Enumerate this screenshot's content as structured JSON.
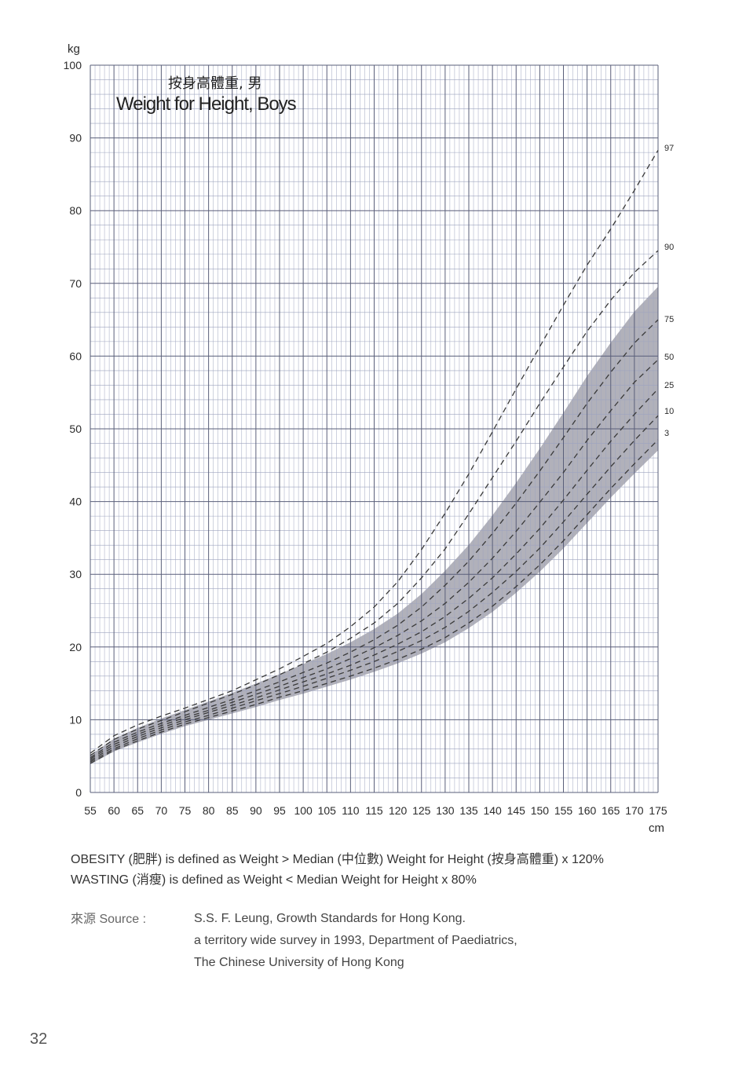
{
  "chart_data": {
    "type": "line",
    "title": "按身高體重, 男",
    "subtitle": "Weight for Height, Boys",
    "xlabel": "cm",
    "ylabel": "kg",
    "xlim": [
      55,
      175
    ],
    "ylim": [
      0,
      100
    ],
    "x_ticks": [
      55,
      60,
      65,
      70,
      75,
      80,
      85,
      90,
      95,
      100,
      105,
      110,
      115,
      120,
      125,
      130,
      135,
      140,
      145,
      150,
      155,
      160,
      165,
      170,
      175
    ],
    "y_ticks": [
      0,
      10,
      20,
      30,
      40,
      50,
      60,
      70,
      80,
      90,
      100
    ],
    "grid": "major every 5 cm / 10 kg, minor every 1 cm / 2 kg",
    "x": [
      55,
      60,
      65,
      70,
      75,
      80,
      85,
      90,
      95,
      100,
      105,
      110,
      115,
      120,
      125,
      130,
      135,
      140,
      145,
      150,
      155,
      160,
      165,
      170,
      175
    ],
    "series": [
      {
        "name": "97",
        "values": [
          5.4,
          7.8,
          9.3,
          10.5,
          11.6,
          12.8,
          14.0,
          15.5,
          17.0,
          18.7,
          20.5,
          22.8,
          25.5,
          29.0,
          33.4,
          38.4,
          43.8,
          49.6,
          55.5,
          61.3,
          67.0,
          72.5,
          77.5,
          82.8,
          88.3
        ]
      },
      {
        "name": "90",
        "values": [
          5.1,
          7.3,
          8.7,
          9.9,
          11.1,
          12.3,
          13.5,
          14.8,
          16.2,
          17.7,
          19.3,
          21.2,
          23.3,
          26.0,
          29.5,
          33.5,
          38.3,
          43.3,
          48.3,
          53.5,
          58.5,
          63.4,
          67.7,
          71.5,
          74.5
        ]
      },
      {
        "name": "75",
        "values": [
          4.8,
          6.9,
          8.3,
          9.5,
          10.6,
          11.7,
          12.8,
          14.0,
          15.2,
          16.5,
          17.8,
          19.3,
          21.0,
          23.0,
          25.5,
          28.5,
          31.8,
          35.6,
          39.8,
          44.2,
          48.8,
          53.5,
          57.8,
          61.8,
          65.0
        ]
      },
      {
        "name": "50",
        "values": [
          4.6,
          6.6,
          8.0,
          9.2,
          10.3,
          11.3,
          12.4,
          13.5,
          14.6,
          15.8,
          17.0,
          18.4,
          19.9,
          21.6,
          23.6,
          26.0,
          28.9,
          32.2,
          35.9,
          39.9,
          44.0,
          48.4,
          52.5,
          56.4,
          59.5
        ]
      },
      {
        "name": "25",
        "values": [
          4.4,
          6.3,
          7.7,
          8.9,
          10.0,
          11.0,
          12.0,
          13.0,
          14.1,
          15.2,
          16.3,
          17.5,
          18.9,
          20.4,
          22.1,
          24.2,
          26.7,
          29.5,
          32.8,
          36.3,
          40.2,
          44.3,
          48.3,
          52.0,
          55.5
        ]
      },
      {
        "name": "10",
        "values": [
          4.2,
          6.0,
          7.4,
          8.6,
          9.7,
          10.6,
          11.6,
          12.6,
          13.6,
          14.6,
          15.7,
          16.8,
          18.0,
          19.4,
          20.9,
          22.7,
          24.9,
          27.5,
          30.4,
          33.6,
          37.2,
          41.0,
          44.8,
          48.4,
          51.8
        ]
      },
      {
        "name": "3",
        "values": [
          4.0,
          5.8,
          7.1,
          8.3,
          9.4,
          10.3,
          11.2,
          12.1,
          13.1,
          14.0,
          15.0,
          16.0,
          17.1,
          18.3,
          19.7,
          21.3,
          23.3,
          25.6,
          28.3,
          31.3,
          34.6,
          38.2,
          41.8,
          45.2,
          48.5
        ]
      }
    ]
  },
  "notes": {
    "obesity": "OBESITY (肥胖) is defined as Weight > Median (中位數) Weight for Height (按身高體重) x 120%",
    "wasting": "WASTING (消瘦) is defined as Weight < Median Weight for Height x 80%"
  },
  "source": {
    "label": "來源 Source :",
    "line1": "S.S. F. Leung, Growth Standards for Hong Kong.",
    "line2": "a territory wide survey in 1993, Department of Paediatrics,",
    "line3": "The Chinese University of Hong Kong"
  },
  "page_number": "32",
  "colors": {
    "grid_major": "#5a5f7a",
    "grid_minor": "#9ea4bf",
    "band": "#a9a9b3",
    "curve": "#3a3a3a"
  }
}
